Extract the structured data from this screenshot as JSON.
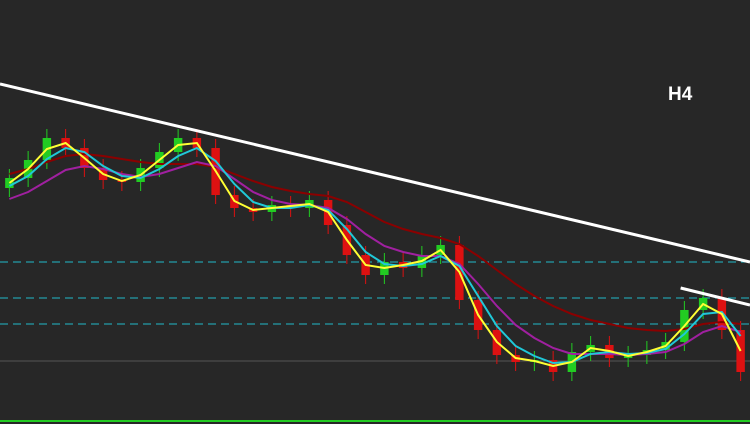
{
  "chart_data": {
    "type": "candlestick",
    "label": "H4",
    "xlim": [
      -0.5,
      39.5
    ],
    "ylim": [
      0,
      424
    ],
    "open": [
      236,
      246,
      264,
      286,
      276,
      256,
      244,
      242,
      256,
      272,
      286,
      276,
      229,
      216,
      212,
      219,
      216,
      224,
      199,
      169,
      149,
      162,
      156,
      169,
      179,
      124,
      94,
      69,
      62,
      64,
      52,
      72,
      79,
      66,
      69,
      74,
      82,
      114,
      126,
      94
    ],
    "high": [
      255,
      273,
      295,
      295,
      285,
      265,
      253,
      265,
      281,
      295,
      295,
      285,
      238,
      225,
      228,
      228,
      233,
      233,
      208,
      178,
      171,
      171,
      178,
      188,
      188,
      133,
      103,
      78,
      73,
      73,
      81,
      88,
      88,
      78,
      83,
      91,
      123,
      135,
      135,
      103
    ],
    "low": [
      227,
      237,
      255,
      267,
      247,
      235,
      233,
      233,
      247,
      263,
      267,
      220,
      207,
      203,
      203,
      207,
      207,
      190,
      160,
      140,
      140,
      147,
      147,
      160,
      115,
      85,
      60,
      53,
      53,
      43,
      43,
      63,
      57,
      57,
      60,
      65,
      73,
      105,
      85,
      43
    ],
    "close": [
      246,
      264,
      286,
      276,
      256,
      244,
      242,
      256,
      272,
      286,
      276,
      229,
      216,
      212,
      219,
      216,
      224,
      199,
      169,
      149,
      162,
      156,
      169,
      179,
      124,
      94,
      69,
      62,
      64,
      52,
      72,
      79,
      66,
      69,
      74,
      82,
      114,
      126,
      94,
      52
    ],
    "up_color": "#22cc22",
    "down_color": "#dd1111",
    "series": [
      {
        "color": "#8b0000",
        "values": [
          250,
          255,
          262,
          268,
          270,
          268,
          265,
          262,
          260,
          260,
          260,
          257,
          250,
          243,
          237,
          233,
          230,
          228,
          222,
          212,
          202,
          195,
          190,
          186,
          180,
          168,
          154,
          140,
          128,
          118,
          110,
          104,
          100,
          96,
          94,
          93,
          95,
          100,
          102,
          100
        ]
      },
      {
        "color": "#a020a0",
        "values": [
          225,
          232,
          243,
          254,
          258,
          255,
          250,
          247,
          250,
          256,
          262,
          258,
          245,
          232,
          224,
          220,
          219,
          216,
          205,
          190,
          178,
          172,
          168,
          168,
          160,
          140,
          118,
          99,
          86,
          76,
          70,
          70,
          70,
          69,
          70,
          72,
          80,
          92,
          98,
          92
        ]
      },
      {
        "color": "#20c8d8",
        "values": [
          238,
          248,
          265,
          276,
          272,
          258,
          248,
          246,
          255,
          268,
          276,
          263,
          240,
          222,
          216,
          216,
          219,
          214,
          195,
          172,
          160,
          158,
          160,
          168,
          158,
          128,
          98,
          78,
          68,
          61,
          62,
          70,
          72,
          70,
          71,
          75,
          90,
          110,
          112,
          88
        ]
      },
      {
        "color": "#ffff33",
        "values": [
          241,
          255,
          275,
          281,
          266,
          250,
          243,
          249,
          264,
          279,
          281,
          253,
          223,
          214,
          216,
          218,
          220,
          212,
          184,
          159,
          156,
          159,
          163,
          174,
          152,
          109,
          82,
          66,
          63,
          58,
          62,
          76,
          73,
          68,
          72,
          78,
          98,
          120,
          110,
          73
        ]
      }
    ],
    "trendlines": [
      {
        "x": [
          -0.5,
          39.5
        ],
        "y": [
          340,
          162
        ]
      },
      {
        "x": [
          35.8,
          39.5
        ],
        "y": [
          136,
          119
        ]
      }
    ],
    "levels": [
      162,
      126,
      100
    ],
    "level_color": "#20b8c8"
  }
}
